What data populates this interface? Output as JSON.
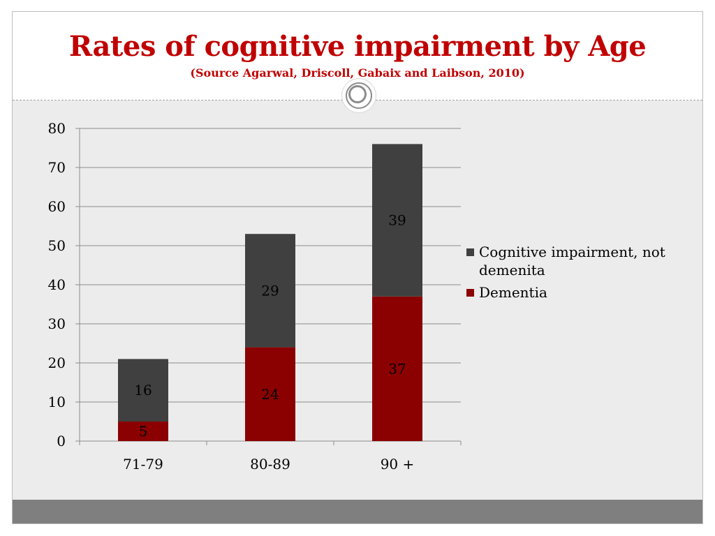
{
  "slide": {
    "title": "Rates of cognitive impairment by Age",
    "subtitle": "(Source Agarwal, Driscoll, Gabaix and Laibson, 2010)"
  },
  "colors": {
    "title": "#c00000",
    "cognitive_impairment": "#404040",
    "dementia": "#8b0000",
    "background": "#ececec",
    "footer": "#7f7f7f"
  },
  "chart_data": {
    "type": "bar",
    "stacked": true,
    "categories": [
      "71-79",
      "80-89",
      "90 +"
    ],
    "series": [
      {
        "name": "Dementia",
        "values": [
          5,
          24,
          37
        ],
        "color": "#8b0000"
      },
      {
        "name": "Cognitive impairment, not demenita",
        "values": [
          16,
          29,
          39
        ],
        "color": "#404040"
      }
    ],
    "legend_order": [
      "Cognitive impairment, not demenita",
      "Dementia"
    ],
    "ylim": [
      0,
      80
    ],
    "yticks": [
      0,
      10,
      20,
      30,
      40,
      50,
      60,
      70,
      80
    ],
    "grid": true,
    "legend_position": "right"
  }
}
